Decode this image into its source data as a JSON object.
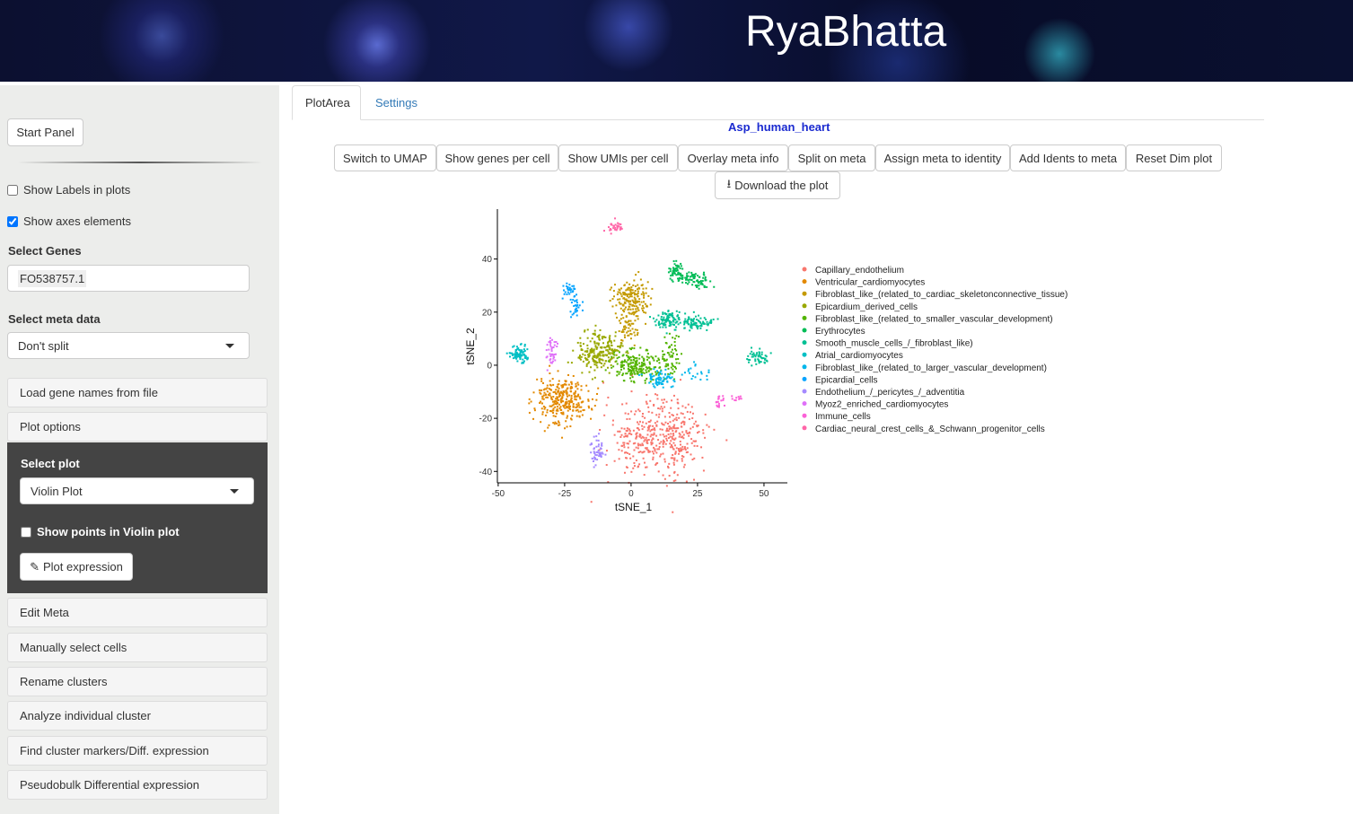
{
  "header": {
    "title": "RyaBhatta"
  },
  "sidebar": {
    "start_panel": "Start Panel",
    "show_labels": {
      "label": "Show Labels in plots",
      "checked": false
    },
    "show_axes": {
      "label": "Show axes elements",
      "checked": true
    },
    "select_genes_label": "Select Genes",
    "selected_gene": "FO538757.1",
    "select_meta_label": "Select meta data",
    "meta_value": "Don't split",
    "load_genes": "Load gene names from file",
    "plot_options": "Plot options",
    "select_plot_label": "Select plot",
    "plot_value": "Violin Plot",
    "show_points": {
      "label": "Show points in Violin plot",
      "checked": false
    },
    "plot_expression": "Plot expression",
    "panels": [
      "Edit Meta",
      "Manually select cells",
      "Rename clusters",
      "Analyze individual cluster",
      "Find cluster markers/Diff. expression",
      "Pseudobulk Differential expression"
    ]
  },
  "main": {
    "tabs": [
      {
        "label": "PlotArea",
        "active": true
      },
      {
        "label": "Settings",
        "active": false
      }
    ],
    "dataset_title": "Asp_human_heart",
    "buttons": [
      "Switch to UMAP",
      "Show genes per cell",
      "Show UMIs per cell",
      "Overlay meta info",
      "Split on meta",
      "Assign meta to identity",
      "Add Idents to meta",
      "Reset Dim plot"
    ],
    "download": "Download the plot"
  },
  "chart_data": {
    "type": "scatter",
    "xlabel": "tSNE_1",
    "ylabel": "tSNE_2",
    "xlim": [
      -50.3,
      58.8
    ],
    "ylim": [
      -44.3,
      58.8
    ],
    "xticks": [
      -50,
      -25,
      0,
      25,
      50
    ],
    "yticks": [
      -40,
      -20,
      0,
      20,
      40
    ],
    "grid": false,
    "legend_placement": "right",
    "series": [
      {
        "name": "Capillary_endothelium",
        "color": "#F8766D",
        "clusters": [
          [
            4,
            -27,
            7,
            7,
            220
          ],
          [
            17,
            -27,
            6,
            7,
            220
          ]
        ]
      },
      {
        "name": "Ventricular_cardiomyocytes",
        "color": "#E38900",
        "clusters": [
          [
            -26,
            -13,
            5,
            4.5,
            300
          ]
        ]
      },
      {
        "name": "Fibroblast_like_(related_to_cardiac_skeletonconnective_tissue)",
        "color": "#C49A00",
        "clusters": [
          [
            0,
            25,
            3.5,
            3.5,
            170
          ],
          [
            -1,
            15,
            2,
            4,
            60
          ]
        ]
      },
      {
        "name": "Epicardium_derived_cells",
        "color": "#99A800",
        "clusters": [
          [
            -12,
            5,
            4,
            3.5,
            230
          ]
        ]
      },
      {
        "name": "Fibroblast_like_(related_to_smaller_vascular_development)",
        "color": "#53B400",
        "clusters": [
          [
            2,
            0,
            4.5,
            3,
            200
          ],
          [
            15,
            3,
            2.5,
            4,
            60
          ]
        ]
      },
      {
        "name": "Erythrocytes",
        "color": "#00BC56",
        "clusters": [
          [
            17,
            36,
            1.5,
            1.5,
            40
          ],
          [
            22,
            33,
            3,
            1.2,
            60
          ],
          [
            27,
            31,
            1.5,
            1.2,
            30
          ]
        ]
      },
      {
        "name": "Smooth_muscle_cells_/_fibroblast_like)",
        "color": "#00C094",
        "clusters": [
          [
            15,
            17,
            3,
            1.7,
            100
          ],
          [
            25,
            16,
            3,
            1.2,
            70
          ],
          [
            48,
            3,
            2,
            1.5,
            50
          ]
        ]
      },
      {
        "name": "Atrial_cardiomyocytes",
        "color": "#00BFC4",
        "clusters": [
          [
            -42,
            4,
            1.7,
            1.5,
            80
          ]
        ]
      },
      {
        "name": "Fibroblast_like_(related_to_larger_vascular_development)",
        "color": "#00B6EB",
        "clusters": [
          [
            11,
            -5,
            2.5,
            1.6,
            70
          ],
          [
            25,
            -3,
            3,
            2,
            20
          ]
        ]
      },
      {
        "name": "Epicardial_cells",
        "color": "#06A4FF",
        "clusters": [
          [
            -23,
            28,
            1.2,
            1.5,
            30
          ],
          [
            -21,
            22,
            1.2,
            2,
            30
          ]
        ]
      },
      {
        "name": "Endothelium_/_pericytes_/_adventitia",
        "color": "#A58AFF",
        "clusters": [
          [
            -13,
            -33,
            1.5,
            2.5,
            50
          ]
        ]
      },
      {
        "name": "Myoz2_enriched_cardiomyocytes",
        "color": "#DF70F8",
        "clusters": [
          [
            -30,
            6,
            1,
            3,
            40
          ]
        ]
      },
      {
        "name": "Immune_cells",
        "color": "#FB61D7",
        "clusters": [
          [
            33,
            -14,
            1,
            1.5,
            18
          ],
          [
            39,
            -12.5,
            1,
            0.5,
            10
          ]
        ]
      },
      {
        "name": "Cardiac_neural_crest_cells_&_Schwann_progenitor_cells",
        "color": "#FF66A8",
        "clusters": [
          [
            -6,
            52,
            1.5,
            1.2,
            30
          ]
        ]
      }
    ]
  }
}
